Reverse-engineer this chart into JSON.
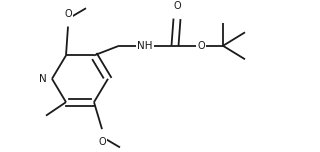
{
  "bg_color": "#ffffff",
  "line_color": "#1a1a1a",
  "line_width": 1.3,
  "font_size": 7.0,
  "fig_width": 3.2,
  "fig_height": 1.52,
  "dpi": 100,
  "xlim": [
    0,
    320
  ],
  "ylim": [
    0,
    152
  ]
}
